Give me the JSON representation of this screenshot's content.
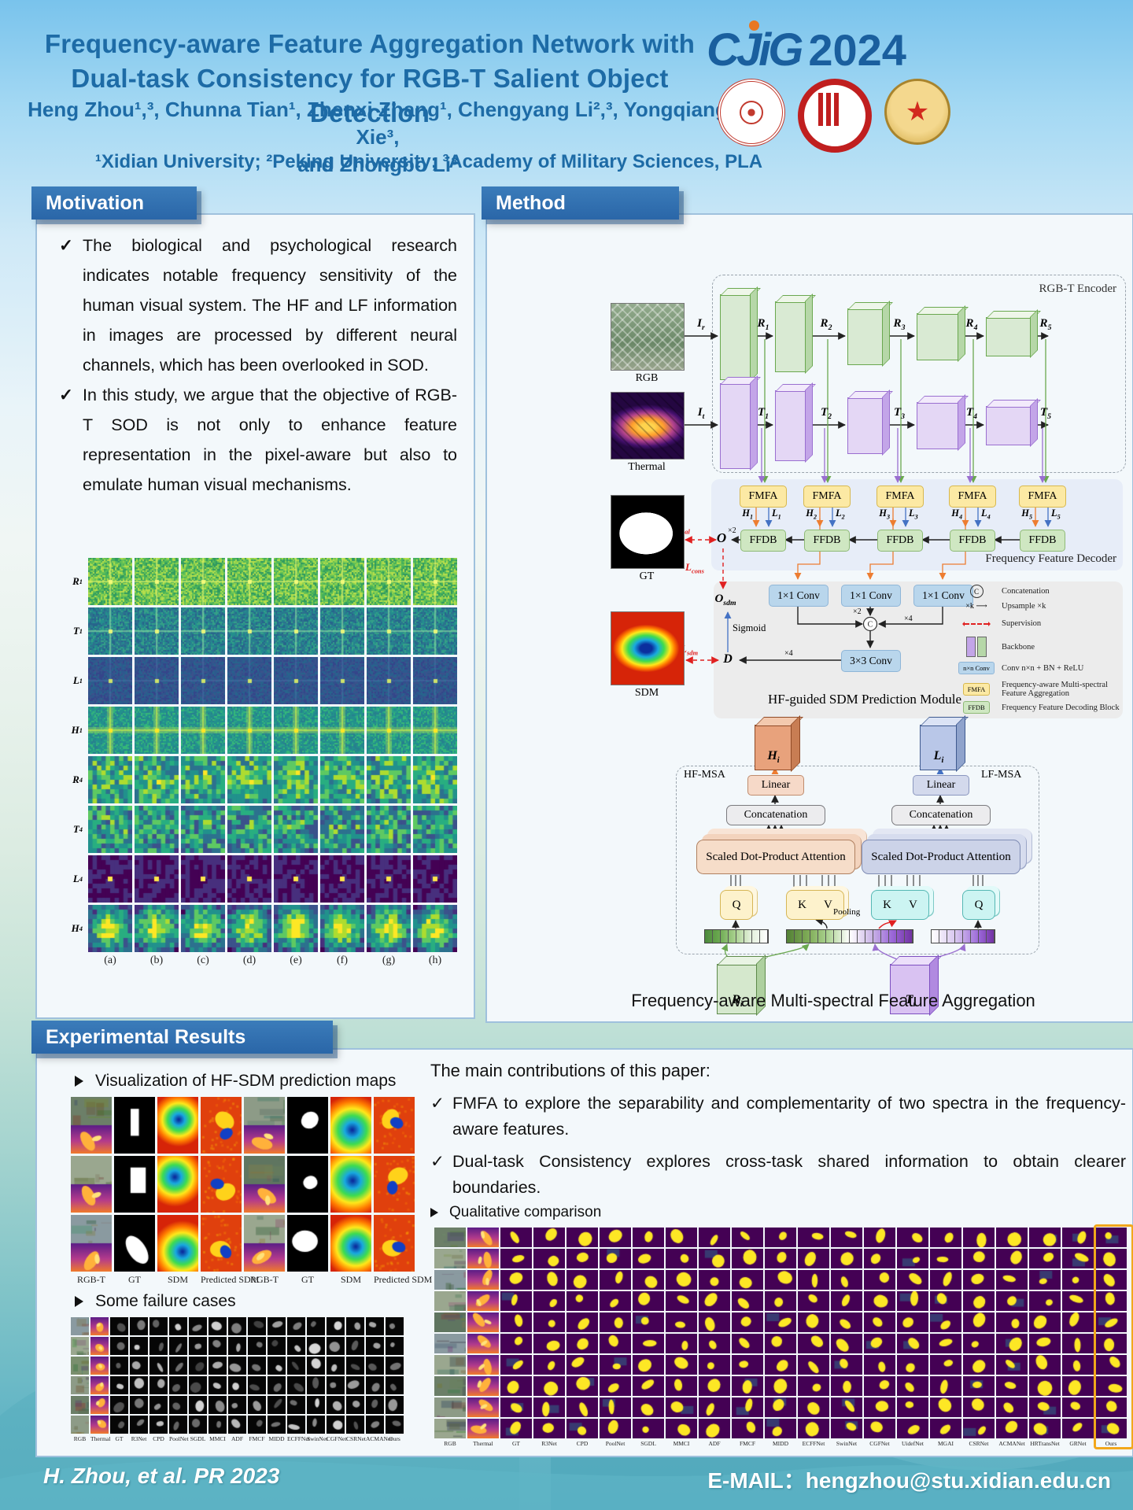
{
  "icons": {
    "tick": "✓"
  },
  "header": {
    "title_line1": "Frequency-aware Feature Aggregation Network with",
    "title_line2": "Dual-task Consistency for RGB-T Salient Object Detection",
    "logo_text": "CJiG",
    "logo_year": "2024",
    "authors_line1": "Heng Zhou¹,³, Chunna Tian¹, Zhenxi Zhang¹, Chengyang Li²,³, Yongqiang Xie³,",
    "authors_line2": "and Zhongbo Li³",
    "affiliations": "¹Xidian University; ²Peking University; ³Academy of Military Sciences, PLA"
  },
  "motivation": {
    "heading": "Motivation",
    "bullets": [
      "The biological and psychological research indicates notable frequency sensitivity of the human visual system. The HF and LF information in images are processed by different neural channels, which has been overlooked in SOD.",
      "In this study, we argue that the objective of RGB-T SOD is not only to enhance feature representation in the pixel-aware but also to emulate human visual mechanisms."
    ],
    "grid": {
      "row_labels": [
        [
          "R",
          "1"
        ],
        [
          "T",
          "1"
        ],
        [
          "L",
          "1"
        ],
        [
          "H",
          "1"
        ],
        [
          "R",
          "4"
        ],
        [
          "T",
          "4"
        ],
        [
          "L",
          "4"
        ],
        [
          "H",
          "4"
        ]
      ],
      "col_labels": [
        "(a)",
        "(b)",
        "(c)",
        "(d)",
        "(e)",
        "(f)",
        "(g)",
        "(h)"
      ]
    }
  },
  "method": {
    "heading": "Method",
    "encoder": {
      "box_label": "RGB-T Encoder",
      "rgb_image_label": "RGB",
      "thermal_image_label": "Thermal",
      "rgb_input": [
        "I",
        "r"
      ],
      "thermal_input": [
        "I",
        "t"
      ],
      "rgb_stages": [
        [
          "R",
          "1"
        ],
        [
          "R",
          "2"
        ],
        [
          "R",
          "3"
        ],
        [
          "R",
          "4"
        ],
        [
          "R",
          "5"
        ]
      ],
      "thermal_stages": [
        [
          "T",
          "1"
        ],
        [
          "T",
          "2"
        ],
        [
          "T",
          "3"
        ],
        [
          "T",
          "4"
        ],
        [
          "T",
          "5"
        ]
      ]
    },
    "decoder": {
      "box_label": "Frequency Feature Decoder",
      "fmfa": "FMFA",
      "ffdb": "FFDB",
      "hf": [
        [
          "H",
          "1"
        ],
        [
          "H",
          "2"
        ],
        [
          "H",
          "3"
        ],
        [
          "H",
          "4"
        ],
        [
          "H",
          "5"
        ]
      ],
      "lf": [
        [
          "L",
          "1"
        ],
        [
          "L",
          "2"
        ],
        [
          "L",
          "3"
        ],
        [
          "L",
          "4"
        ],
        [
          "L",
          "5"
        ]
      ],
      "output": [
        "O",
        ""
      ],
      "upsample2": "×2",
      "gt_label": "GT",
      "loss_sal": [
        "L",
        "sal"
      ],
      "loss_cons": [
        "L",
        "cons"
      ],
      "loss_sdm": [
        "L",
        "sdm"
      ]
    },
    "sdm": {
      "box_label": "HF-guided SDM Prediction Module",
      "sdm_image_label": "SDM",
      "conv1": "1×1 Conv",
      "conv3": "3×3 Conv",
      "concat_symbol": "C",
      "o_sdm": [
        "O",
        "sdm"
      ],
      "d": [
        "D",
        ""
      ],
      "sigmoid": "Sigmoid",
      "x2": "×2",
      "x4": "×4"
    },
    "legend": [
      {
        "icon": "concat-circle-icon",
        "label": "Concatenation"
      },
      {
        "icon": "upsample-arrow-icon",
        "label": "Upsample ×k"
      },
      {
        "icon": "supervision-arrow-icon",
        "label": "Supervision"
      },
      {
        "icon": "backbone-icon",
        "label": "Backbone"
      },
      {
        "icon": "conv-box-icon",
        "box": "n×n Conv",
        "label": "Conv n×n + BN + ReLU"
      },
      {
        "icon": "fmfa-box-icon",
        "box": "FMFA",
        "label": "Frequency-aware Multi-spectral Feature Aggregation"
      },
      {
        "icon": "ffdb-box-icon",
        "box": "FFDB",
        "label": "Frequency Feature Decoding Block"
      }
    ],
    "fmfa_detail": {
      "hf_cube": [
        "H",
        "i"
      ],
      "lf_cube": [
        "L",
        "i"
      ],
      "r_cube": [
        "R",
        "i"
      ],
      "t_cube": [
        "T",
        "i"
      ],
      "hf_msa": "HF-MSA",
      "lf_msa": "LF-MSA",
      "linear": "Linear",
      "concatenation": "Concatenation",
      "sdpa": "Scaled Dot-Product Attention",
      "q": "Q",
      "k": "K",
      "v": "V",
      "pooling": "Pooling",
      "caption": "Frequency-aware Multi-spectral Feature Aggregation"
    }
  },
  "results": {
    "heading": "Experimental Results",
    "viz_title": "Visualization of HF-SDM prediction maps",
    "viz_col_labels": [
      "RGB-T",
      "GT",
      "SDM",
      "Predicted SDM",
      "RGB-T",
      "GT",
      "SDM",
      "Predicted SDM"
    ],
    "failure_title": "Some failure cases",
    "failure_col_labels": [
      "RGB",
      "Thermal",
      "GT",
      "R3Net",
      "CPD",
      "PoolNet",
      "SGDL",
      "MMCI",
      "ADF",
      "FMCF",
      "MIDD",
      "ECFFNet",
      "SwinNet",
      "CGFNet",
      "CSRNet",
      "ACMANet",
      "Ours"
    ],
    "contributions_title": "The main contributions of this paper:",
    "contributions": [
      "FMFA to explore the separability and complementarity of two spectra in the frequency-aware features.",
      "Dual-task Consistency explores cross-task shared information to obtain clearer boundaries."
    ],
    "qualitative_title": "Qualitative comparison",
    "qual_col_labels": [
      "RGB",
      "Thermal",
      "GT",
      "R3Net",
      "CPD",
      "PoolNet",
      "SGDL",
      "MMCI",
      "ADF",
      "FMCF",
      "MIDD",
      "ECFFNet",
      "SwinNet",
      "CGFNet",
      "UidefNet",
      "MGAI",
      "CSRNet",
      "ACMANet",
      "HRTransNet",
      "GRNet",
      "Ours"
    ]
  },
  "footer": {
    "citation": "H. Zhou, et al. PR 2023",
    "email_label": "E-MAIL：",
    "email": "hengzhou@stu.xidian.edu.cn"
  },
  "colors": {
    "accent_blue": "#2a6cab",
    "title_blue": "#1d6ba6",
    "loss_red": "#e02020",
    "fmfa_yellow": "#fce9a4",
    "ffdb_green": "#cfe7c2",
    "ours_highlight": "#f2a71b"
  }
}
